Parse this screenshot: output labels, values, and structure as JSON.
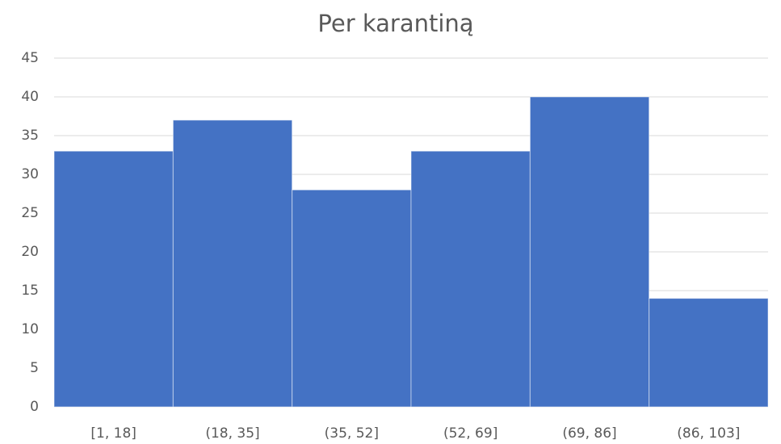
{
  "chart_data": {
    "type": "bar",
    "title": "Per karantiną",
    "categories": [
      "[1, 18]",
      "(18, 35]",
      "(35, 52]",
      "(52, 69]",
      "(69, 86]",
      "(86, 103]"
    ],
    "values": [
      33,
      37,
      28,
      33,
      40,
      14
    ],
    "color": "#4472c4",
    "ylim": [
      0,
      45
    ],
    "yticks": [
      0,
      5,
      10,
      15,
      20,
      25,
      30,
      35,
      40,
      45
    ],
    "grid": true
  }
}
